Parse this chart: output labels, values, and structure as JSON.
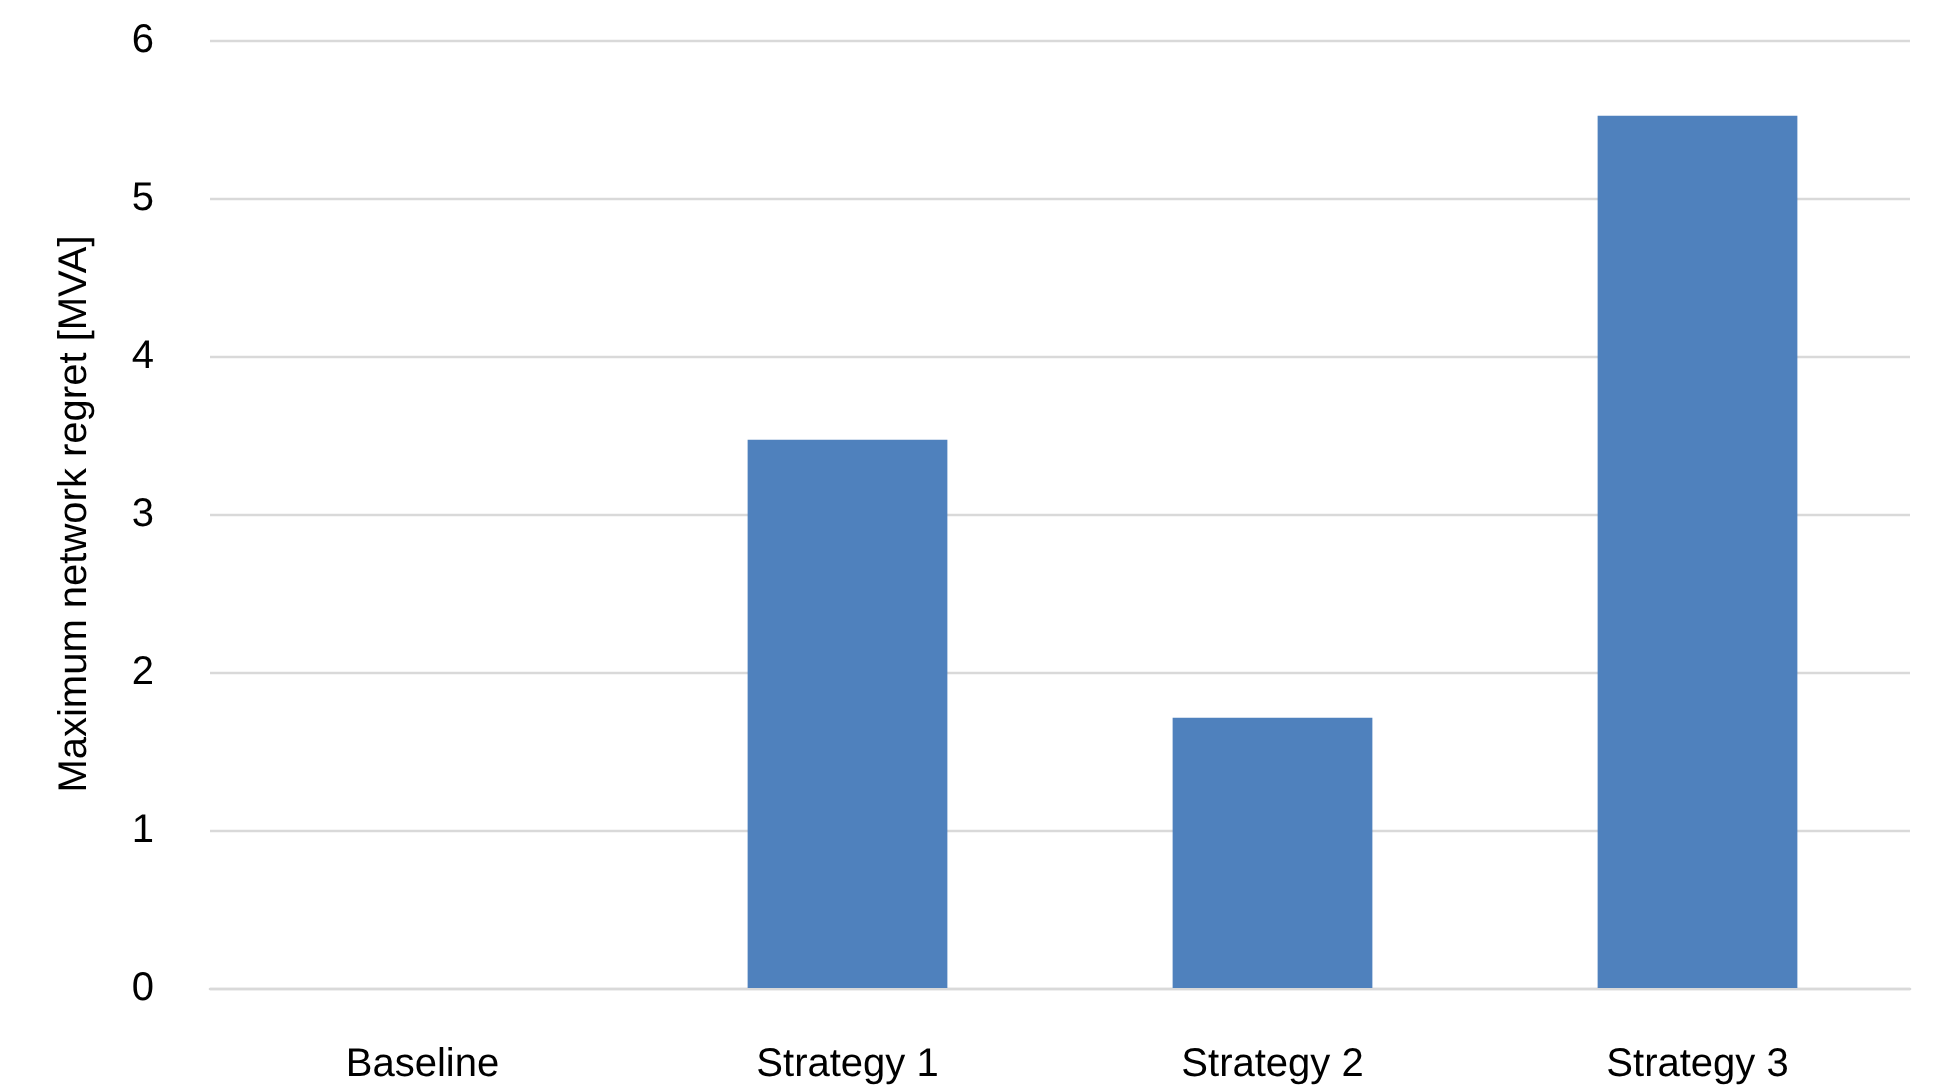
{
  "chart_data": {
    "type": "bar",
    "ylabel": "Maximum network regret [MVA]",
    "categories": [
      "Baseline",
      "Strategy 1",
      "Strategy 2",
      "Strategy 3"
    ],
    "values": [
      0,
      3.47,
      1.71,
      5.52
    ],
    "color": "#4f81bd",
    "ylim": [
      0,
      6
    ],
    "yticks": [
      0,
      1,
      2,
      3,
      4,
      5,
      6
    ],
    "grid": "y"
  }
}
